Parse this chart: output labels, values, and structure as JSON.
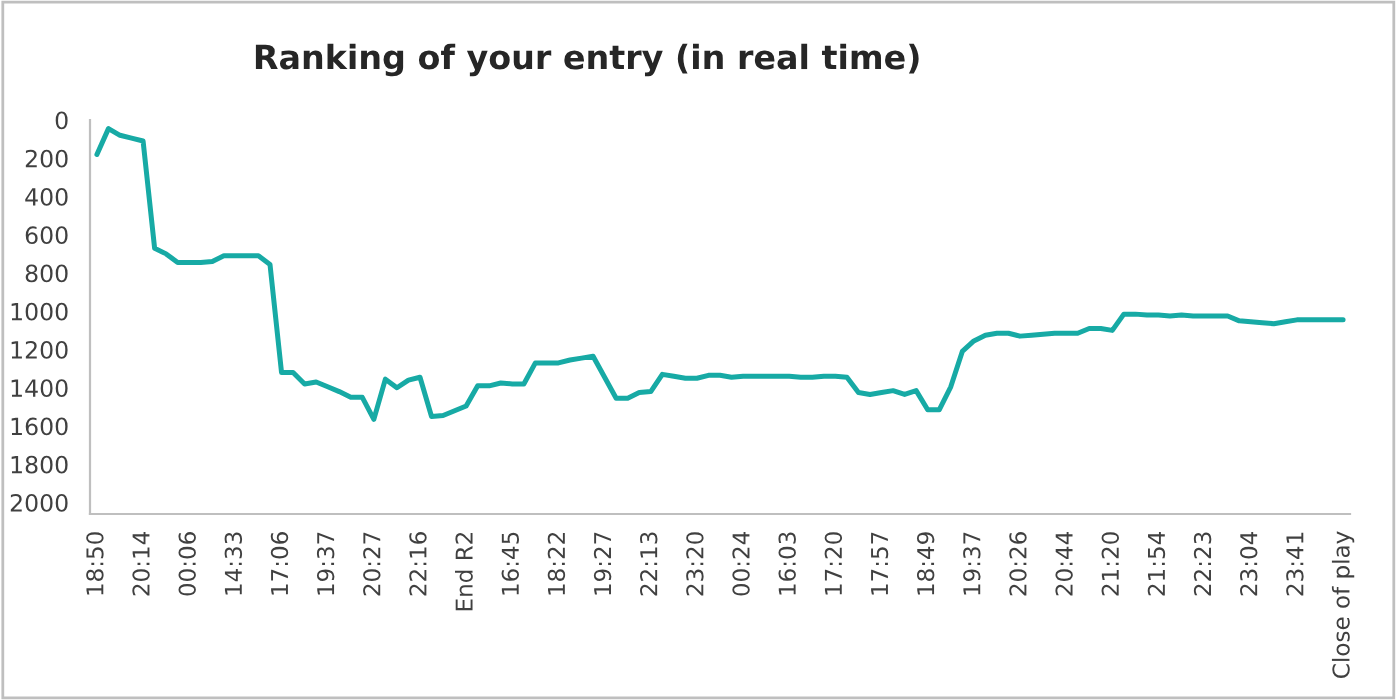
{
  "chart_data": {
    "type": "line",
    "title": "Ranking of your entry (in real time)",
    "categories": [
      "18:50",
      null,
      null,
      null,
      "20:14",
      null,
      null,
      null,
      "00:06",
      null,
      null,
      null,
      "14:33",
      null,
      null,
      null,
      "17:06",
      null,
      null,
      null,
      "19:37",
      null,
      null,
      null,
      "20:27",
      null,
      null,
      null,
      "22:16",
      null,
      null,
      null,
      "End R2",
      null,
      null,
      null,
      "16:45",
      null,
      null,
      null,
      "18:22",
      null,
      null,
      null,
      "19:27",
      null,
      null,
      null,
      "22:13",
      null,
      null,
      null,
      "23:20",
      null,
      null,
      null,
      "00:24",
      null,
      null,
      null,
      "16:03",
      null,
      null,
      null,
      "17:20",
      null,
      null,
      null,
      "17:57",
      null,
      null,
      null,
      "18:49",
      null,
      null,
      null,
      "19:37",
      null,
      null,
      null,
      "20:26",
      null,
      null,
      null,
      "20:44",
      null,
      null,
      null,
      "21:20",
      null,
      null,
      null,
      "21:54",
      null,
      null,
      null,
      "22:23",
      null,
      null,
      null,
      "23:04",
      null,
      null,
      null,
      "23:41",
      null,
      null,
      null,
      "Close of play"
    ],
    "series": [
      {
        "color": "#17aaa5",
        "values": [
          180,
          45,
          80,
          95,
          110,
          670,
          700,
          745,
          745,
          745,
          740,
          710,
          710,
          710,
          710,
          755,
          1320,
          1320,
          1380,
          1370,
          1395,
          1420,
          1450,
          1450,
          1565,
          1355,
          1400,
          1360,
          1345,
          1550,
          1545,
          1520,
          1495,
          1390,
          1390,
          1375,
          1380,
          1380,
          1270,
          1270,
          1270,
          1255,
          1245,
          1235,
          1345,
          1455,
          1455,
          1425,
          1420,
          1330,
          1340,
          1350,
          1350,
          1335,
          1335,
          1345,
          1340,
          1340,
          1340,
          1340,
          1340,
          1345,
          1345,
          1340,
          1340,
          1345,
          1425,
          1435,
          1425,
          1415,
          1435,
          1415,
          1515,
          1515,
          1395,
          1210,
          1155,
          1125,
          1115,
          1115,
          1130,
          1125,
          1120,
          1115,
          1115,
          1115,
          1090,
          1090,
          1100,
          1015,
          1015,
          1020,
          1020,
          1025,
          1020,
          1025,
          1025,
          1025,
          1025,
          1050,
          1055,
          1060,
          1065,
          1055,
          1045,
          1045,
          1045,
          1045,
          1045
        ]
      }
    ],
    "ylim": [
      2060,
      0
    ],
    "yticks": [
      0,
      200,
      400,
      600,
      800,
      1000,
      1200,
      1400,
      1600,
      1800,
      2000
    ],
    "grid": false,
    "legend": false,
    "marker": "none",
    "line_style": "solid"
  }
}
